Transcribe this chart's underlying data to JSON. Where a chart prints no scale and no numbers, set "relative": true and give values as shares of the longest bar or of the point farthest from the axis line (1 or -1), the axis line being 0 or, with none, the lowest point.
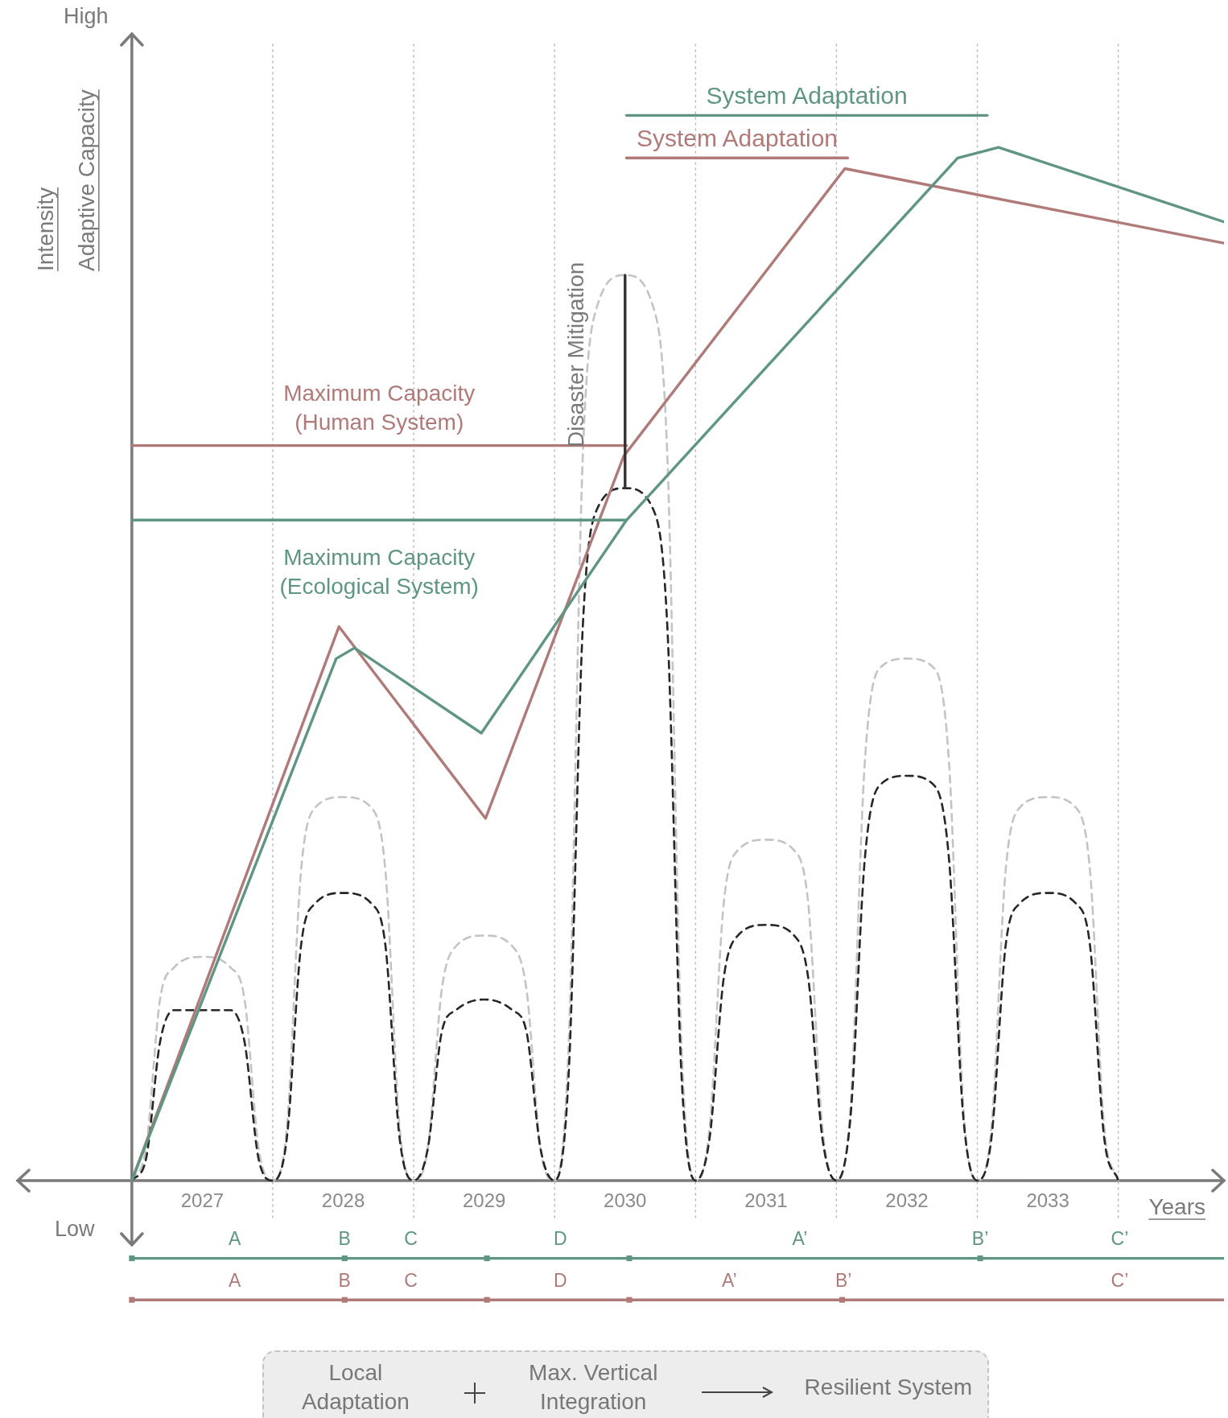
{
  "chart_data": {
    "type": "line",
    "relative": true,
    "xlabel": "Years",
    "ylabel": "Intensity",
    "xlim": [
      2025.69,
      2034.25
    ],
    "xticks": [
      2027,
      2028,
      2029,
      2030,
      2031,
      2032,
      2033
    ],
    "grid": false,
    "legend": false,
    "marker": "none",
    "line_style": "solid",
    "series": [
      {
        "color": "#c4c4c4",
        "line_style": "dashed",
        "x": [
          2026.5,
          2026.6,
          2026.7,
          2026.8,
          2027,
          2027.2,
          2027.3,
          2027.4,
          2027.5,
          2027.6,
          2027.7,
          2027.8,
          2028,
          2028.2,
          2028.3,
          2028.4,
          2028.5,
          2028.6,
          2028.7,
          2028.8,
          2029,
          2029.2,
          2029.3,
          2029.4,
          2029.5,
          2029.6,
          2029.7,
          2029.8,
          2030,
          2030.2,
          2030.3,
          2030.4,
          2030.5,
          2030.6,
          2030.7,
          2030.8,
          2031,
          2031.2,
          2031.3,
          2031.4,
          2031.5,
          2031.6,
          2031.7,
          2031.8,
          2032,
          2032.2,
          2032.3,
          2032.4,
          2032.5,
          2032.6,
          2032.7,
          2032.8,
          2033,
          2033.2,
          2033.3,
          2033.4,
          2033.5
        ],
        "values": [
          0,
          0.03,
          0.17,
          0.2,
          0.21,
          0.2,
          0.17,
          0.03,
          0,
          0.05,
          0.29,
          0.35,
          0.36,
          0.35,
          0.29,
          0.05,
          0,
          0.03,
          0.18,
          0.22,
          0.23,
          0.22,
          0.18,
          0.03,
          0,
          0.13,
          0.68,
          0.82,
          0.85,
          0.82,
          0.68,
          0.13,
          0,
          0.05,
          0.26,
          0.31,
          0.32,
          0.31,
          0.26,
          0.05,
          0,
          0.07,
          0.39,
          0.48,
          0.49,
          0.48,
          0.39,
          0.07,
          0,
          0.05,
          0.29,
          0.35,
          0.36,
          0.35,
          0.29,
          0.05,
          0
        ]
      },
      {
        "color": "#262626",
        "line_style": "dashed",
        "x": [
          2026.5,
          2026.6,
          2026.7,
          2026.8,
          2027,
          2027.2,
          2027.3,
          2027.4,
          2027.5,
          2027.6,
          2027.7,
          2027.8,
          2028,
          2028.2,
          2028.3,
          2028.4,
          2028.5,
          2028.6,
          2028.7,
          2028.8,
          2029,
          2029.2,
          2029.3,
          2029.4,
          2029.5,
          2029.6,
          2029.7,
          2029.8,
          2030,
          2030.2,
          2030.3,
          2030.4,
          2030.5,
          2030.6,
          2030.7,
          2030.8,
          2031,
          2031.2,
          2031.3,
          2031.4,
          2031.5,
          2031.6,
          2031.7,
          2031.8,
          2032,
          2032.2,
          2032.3,
          2032.4,
          2032.5,
          2032.6,
          2032.7,
          2032.8,
          2033,
          2033.2,
          2033.3,
          2033.4,
          2033.5
        ],
        "values": [
          0,
          0.02,
          0.13,
          0.16,
          0.16,
          0.16,
          0.13,
          0.02,
          0,
          0.04,
          0.22,
          0.26,
          0.27,
          0.26,
          0.22,
          0.04,
          0,
          0.03,
          0.14,
          0.16,
          0.17,
          0.16,
          0.14,
          0.03,
          0,
          0.1,
          0.52,
          0.63,
          0.65,
          0.63,
          0.52,
          0.1,
          0,
          0.04,
          0.19,
          0.23,
          0.24,
          0.23,
          0.19,
          0.04,
          0,
          0.06,
          0.3,
          0.37,
          0.38,
          0.37,
          0.3,
          0.06,
          0,
          0.04,
          0.22,
          0.26,
          0.27,
          0.26,
          0.22,
          0.04,
          0
        ]
      },
      {
        "color": "#b07a78",
        "x": [
          2026.5,
          2027.97,
          2029.01,
          2029.99,
          2031.56,
          2034.25
        ],
        "values": [
          0,
          0.52,
          0.34,
          0.68,
          0.95,
          0.88
        ]
      },
      {
        "color": "#5f9682",
        "x": [
          2026.5,
          2027.95,
          2028.08,
          2028.98,
          2030.01,
          2032.36,
          2032.65,
          2034.25
        ],
        "values": [
          0,
          0.49,
          0.5,
          0.42,
          0.62,
          0.96,
          0.97,
          0.9
        ]
      },
      {
        "name": "Maximum Capacity (Human System)",
        "color": "#b07a78",
        "x": [
          2026.5,
          2030.01
        ],
        "values": [
          0.69,
          0.69
        ]
      },
      {
        "name": "Maximum Capacity (Ecological System)",
        "color": "#5f9682",
        "x": [
          2026.5,
          2030.01
        ],
        "values": [
          0.62,
          0.62
        ]
      },
      {
        "name": "System Adaptation",
        "color": "#5f9682",
        "x": [
          2030.01,
          2032.57
        ],
        "values": [
          1,
          1
        ]
      },
      {
        "name": "System Adaptation",
        "color": "#b07a78",
        "x": [
          2030.01,
          2031.58
        ],
        "values": [
          0.96,
          0.96
        ]
      },
      {
        "color": "#5f9682",
        "x": [
          2026.5,
          2034.25
        ],
        "values": [
          -0.073,
          -0.073
        ]
      },
      {
        "type": "scatter",
        "marker": "square",
        "color": "#5f9682",
        "x": [
          2026.5,
          2028.01,
          2029.02,
          2030.03,
          2032.52
        ],
        "values": [
          -0.073,
          -0.073,
          -0.073,
          -0.073,
          -0.073
        ]
      },
      {
        "color": "#b07a78",
        "x": [
          2026.5,
          2034.25
        ],
        "values": [
          -0.112,
          -0.112
        ]
      },
      {
        "type": "scatter",
        "marker": "square",
        "color": "#b07a78",
        "x": [
          2026.5,
          2028.01,
          2029.02,
          2030.03,
          2031.54
        ],
        "values": [
          -0.112,
          -0.112,
          -0.112,
          -0.112,
          -0.112
        ]
      },
      {
        "color": "#333333",
        "x": [
          2030,
          2030
        ],
        "values": [
          0.65,
          0.85
        ]
      }
    ],
    "ref_lines": [
      {
        "axis": "x",
        "value": 2026.5,
        "color": "#7a7a7a",
        "line_style": "solid"
      },
      {
        "axis": "x",
        "value": 2027.5,
        "color": "#bbbbbb",
        "line_style": "dotted"
      },
      {
        "axis": "x",
        "value": 2028.5,
        "color": "#bbbbbb",
        "line_style": "dotted"
      },
      {
        "axis": "x",
        "value": 2029.5,
        "color": "#bbbbbb",
        "line_style": "dotted"
      },
      {
        "axis": "x",
        "value": 2030.5,
        "color": "#bbbbbb",
        "line_style": "dotted"
      },
      {
        "axis": "x",
        "value": 2031.5,
        "color": "#bbbbbb",
        "line_style": "dotted"
      },
      {
        "axis": "x",
        "value": 2032.5,
        "color": "#bbbbbb",
        "line_style": "dotted"
      },
      {
        "axis": "x",
        "value": 2033.5,
        "color": "#bbbbbb",
        "line_style": "dotted"
      }
    ],
    "annotations": [
      "High",
      "Low",
      "Adaptive Capacity",
      {
        "text": "Disaster Mitigation",
        "x": 2030,
        "y": 0.85
      },
      {
        "text": "A",
        "x": 2027.23,
        "y": -0.073
      },
      {
        "text": "B",
        "x": 2028.01,
        "y": -0.073
      },
      {
        "text": "C",
        "x": 2028.48,
        "y": -0.073
      },
      {
        "text": "D",
        "x": 2029.54,
        "y": -0.073
      },
      {
        "text": "A’",
        "x": 2031.24,
        "y": -0.073
      },
      {
        "text": "B’",
        "x": 2032.52,
        "y": -0.073
      },
      {
        "text": "C’",
        "x": 2033.51,
        "y": -0.073
      },
      {
        "text": "A",
        "x": 2027.23,
        "y": -0.112
      },
      {
        "text": "B",
        "x": 2028.01,
        "y": -0.112
      },
      {
        "text": "C",
        "x": 2028.48,
        "y": -0.112
      },
      {
        "text": "D",
        "x": 2029.54,
        "y": -0.112
      },
      {
        "text": "A’",
        "x": 2030.74,
        "y": -0.112
      },
      {
        "text": "B’",
        "x": 2031.55,
        "y": -0.112
      },
      {
        "text": "C’",
        "x": 2033.51,
        "y": -0.112
      },
      "Local Adaptation",
      "Max. Vertical Integration",
      "Resilient System"
    ]
  }
}
